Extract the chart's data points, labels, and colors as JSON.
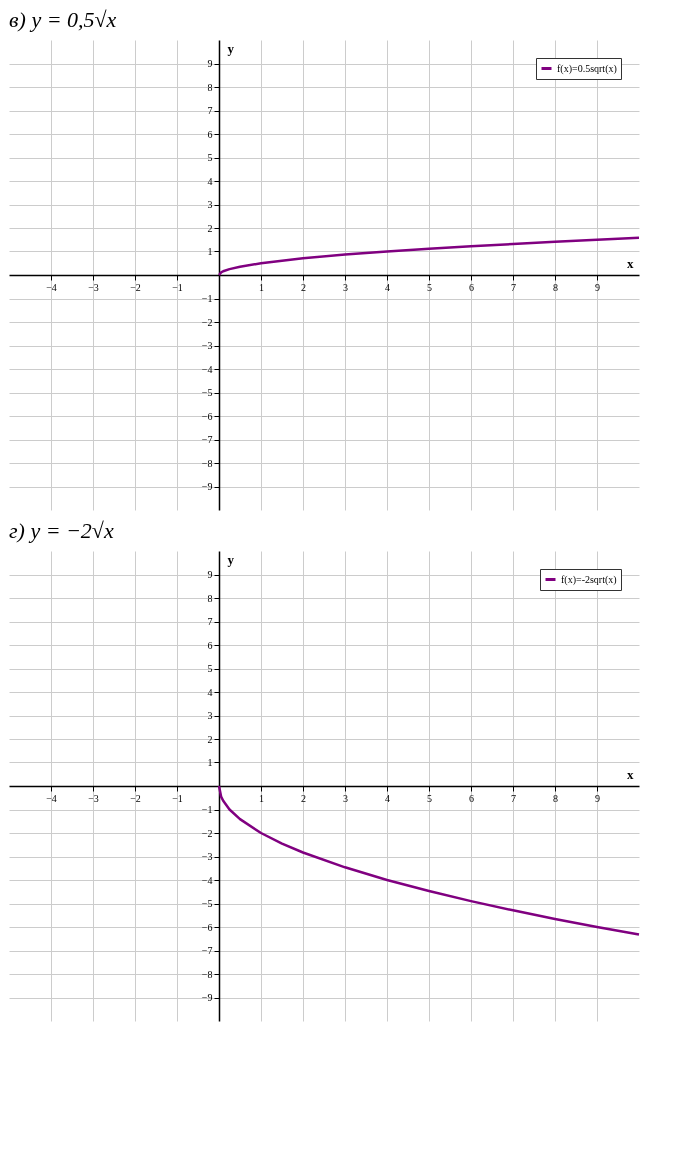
{
  "chart_data": [
    {
      "type": "line",
      "title": "в) y = 0,5√x",
      "xlabel": "x",
      "ylabel": "y",
      "xlim": [
        -5,
        10
      ],
      "ylim": [
        -10,
        10
      ],
      "xticks": [
        -4,
        -3,
        -2,
        -1,
        1,
        2,
        3,
        4,
        5,
        6,
        7,
        8,
        9
      ],
      "yticks": [
        -9,
        -8,
        -7,
        -6,
        -5,
        -4,
        -3,
        -2,
        -1,
        1,
        2,
        3,
        4,
        5,
        6,
        7,
        8,
        9
      ],
      "grid": true,
      "legend": "top right",
      "marker": "none",
      "line_style": "solid",
      "series": [
        {
          "name": "f(x)=0.5sqrt(x)",
          "color": "#800080",
          "x": [
            0,
            0.05,
            0.1,
            0.25,
            0.5,
            1,
            1.5,
            2,
            3,
            4,
            5,
            6,
            7,
            8,
            9,
            10
          ],
          "values": [
            0,
            0.11,
            0.16,
            0.25,
            0.35,
            0.5,
            0.61,
            0.71,
            0.87,
            1,
            1.12,
            1.22,
            1.32,
            1.41,
            1.5,
            1.58
          ]
        }
      ]
    },
    {
      "type": "line",
      "title": "г) y = −2√x",
      "xlabel": "x",
      "ylabel": "y",
      "xlim": [
        -5,
        10
      ],
      "ylim": [
        -10,
        10
      ],
      "xticks": [
        -4,
        -3,
        -2,
        -1,
        1,
        2,
        3,
        4,
        5,
        6,
        7,
        8,
        9
      ],
      "yticks": [
        -9,
        -8,
        -7,
        -6,
        -5,
        -4,
        -3,
        -2,
        -1,
        1,
        2,
        3,
        4,
        5,
        6,
        7,
        8,
        9
      ],
      "grid": true,
      "legend": "top right",
      "marker": "none",
      "line_style": "solid",
      "series": [
        {
          "name": "f(x)=-2sqrt(x)",
          "color": "#800080",
          "x": [
            0,
            0.05,
            0.1,
            0.25,
            0.5,
            1,
            1.5,
            2,
            3,
            4,
            5,
            6,
            7,
            8,
            9,
            10
          ],
          "values": [
            0,
            -0.45,
            -0.63,
            -1,
            -1.41,
            -2,
            -2.45,
            -2.83,
            -3.46,
            -4,
            -4.47,
            -4.9,
            -5.29,
            -5.66,
            -6,
            -6.32
          ]
        }
      ]
    }
  ]
}
